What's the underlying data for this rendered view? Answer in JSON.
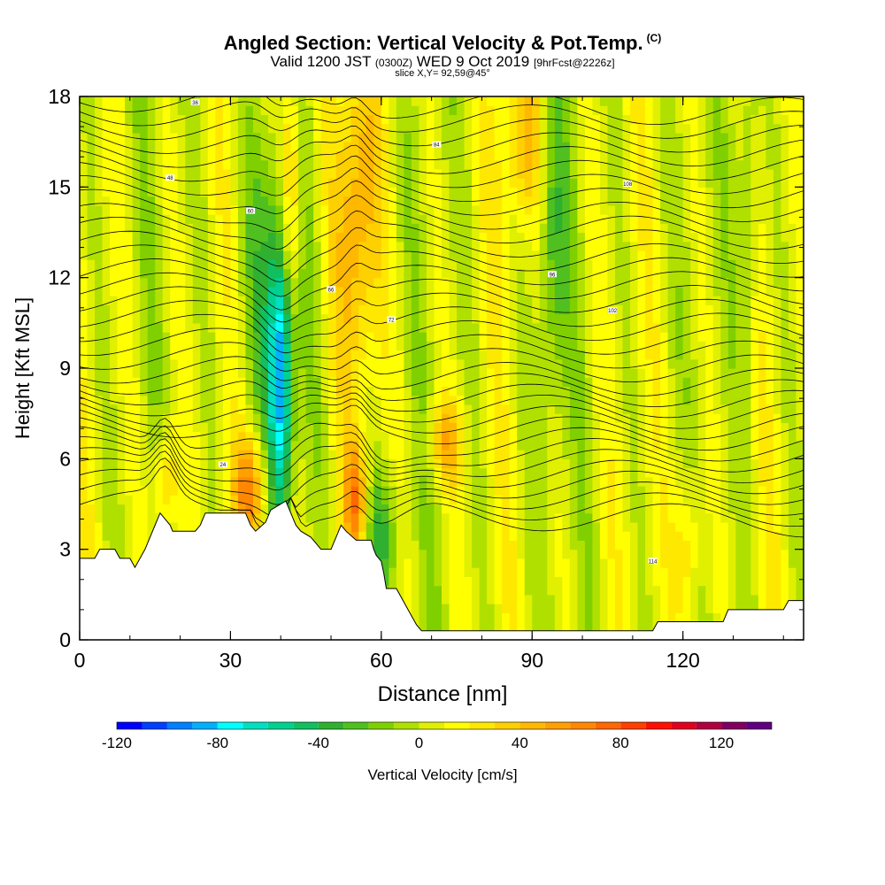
{
  "chart_data": {
    "type": "heatmap",
    "title": "Angled Section: Vertical Velocity & Pot.Temp.",
    "title_unit": "(C)",
    "subtitle_main": "Valid 1200 JST",
    "subtitle_utc": "(0300Z)",
    "subtitle_date": "WED 9 Oct 2019",
    "subtitle_fcst": "[9hrFcst@2226z]",
    "slice_label": "slice X,Y= 92,59@45°",
    "xlabel": "Distance [nm]",
    "ylabel": "Height [Kft MSL]",
    "xlim": [
      0,
      144
    ],
    "ylim": [
      0,
      18
    ],
    "x_ticks": [
      0,
      30,
      60,
      90,
      120
    ],
    "y_ticks": [
      0,
      3,
      6,
      9,
      12,
      15,
      18
    ],
    "colorbar": {
      "label": "Vertical Velocity [cm/s]",
      "min": -120,
      "max": 140,
      "step": 10,
      "tick_values": [
        -120,
        -80,
        -40,
        0,
        40,
        80,
        120
      ],
      "colors": [
        "#0000ff",
        "#0040ff",
        "#0080ff",
        "#00b0ff",
        "#00ffff",
        "#00e0c0",
        "#00d090",
        "#10c060",
        "#30b030",
        "#50c020",
        "#80d000",
        "#b0e000",
        "#e0f000",
        "#ffff00",
        "#ffe800",
        "#ffd000",
        "#ffb800",
        "#ffa000",
        "#ff8800",
        "#ff6800",
        "#ff4000",
        "#ff1000",
        "#e00020",
        "#b00040",
        "#800060",
        "#600080"
      ]
    },
    "terrain_kft": [
      [
        0,
        2.7
      ],
      [
        3,
        2.7
      ],
      [
        4,
        3
      ],
      [
        7,
        3
      ],
      [
        8,
        2.7
      ],
      [
        10,
        2.7
      ],
      [
        11,
        2.4
      ],
      [
        12,
        2.7
      ],
      [
        13,
        3
      ],
      [
        14,
        3.4
      ],
      [
        15,
        3.8
      ],
      [
        16,
        4.2
      ],
      [
        18,
        3.8
      ],
      [
        18.5,
        3.6
      ],
      [
        23,
        3.6
      ],
      [
        24,
        3.8
      ],
      [
        25,
        4.2
      ],
      [
        33,
        4.2
      ],
      [
        34,
        3.8
      ],
      [
        35,
        3.6
      ],
      [
        37,
        3.9
      ],
      [
        38,
        4.3
      ],
      [
        41,
        4.6
      ],
      [
        42,
        4.2
      ],
      [
        43,
        3.8
      ],
      [
        44,
        3.6
      ],
      [
        46,
        3.4
      ],
      [
        47,
        3.2
      ],
      [
        48,
        3
      ],
      [
        50,
        3
      ],
      [
        51,
        3.4
      ],
      [
        52,
        3.8
      ],
      [
        53,
        3.6
      ],
      [
        55,
        3.3
      ],
      [
        58,
        3.3
      ],
      [
        58.5,
        3
      ],
      [
        59,
        2.8
      ],
      [
        60,
        2.6
      ],
      [
        60.5,
        2.2
      ],
      [
        61,
        1.7
      ],
      [
        63,
        1.7
      ],
      [
        64,
        1.4
      ],
      [
        65,
        1.1
      ],
      [
        66,
        0.8
      ],
      [
        67,
        0.5
      ],
      [
        68,
        0.3
      ],
      [
        114,
        0.3
      ],
      [
        115,
        0.6
      ],
      [
        128,
        0.6
      ],
      [
        129,
        1
      ],
      [
        140,
        1
      ],
      [
        141,
        1.3
      ],
      [
        144,
        1.3
      ]
    ],
    "contour_labels": [
      "24",
      "36",
      "48",
      "60",
      "66",
      "72",
      "84",
      "96",
      "102",
      "108",
      "114"
    ],
    "value_range_cm_s": [
      -90,
      110
    ]
  }
}
